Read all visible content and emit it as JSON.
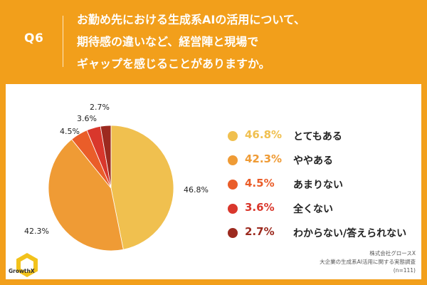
{
  "header": {
    "question_label": "Q6",
    "title_lines": [
      "お勤め先における生成系AIの活用について、",
      "期待感の違いなど、経営陣と現場で",
      "ギャップを感じることがありますか。"
    ]
  },
  "colors": {
    "background": "#f29f1b",
    "panel": "#ffffff"
  },
  "chart_data": {
    "type": "pie",
    "title": "お勤め先における生成系AIの活用について、期待感の違いなど、経営陣と現場でギャップを感じることがありますか。",
    "slices": [
      {
        "label": "とてもある",
        "value": 46.8,
        "display": "46.8%",
        "color": "#f0c04f"
      },
      {
        "label": "ややある",
        "value": 42.3,
        "display": "42.3%",
        "color": "#ef9b35"
      },
      {
        "label": "あまりない",
        "value": 4.5,
        "display": "4.5%",
        "color": "#ea5d29"
      },
      {
        "label": "全くない",
        "value": 3.6,
        "display": "3.6%",
        "color": "#d9372c"
      },
      {
        "label": "わからない/答えられない",
        "value": 2.7,
        "display": "2.7%",
        "color": "#9c2a1f"
      }
    ],
    "legend_position": "right"
  },
  "brand": {
    "logo_text": "GrowthX"
  },
  "source": {
    "company": "株式会社グロースX",
    "survey": "大企業の生成系AI活用に関する実態調査",
    "sample": "(n=111)"
  }
}
